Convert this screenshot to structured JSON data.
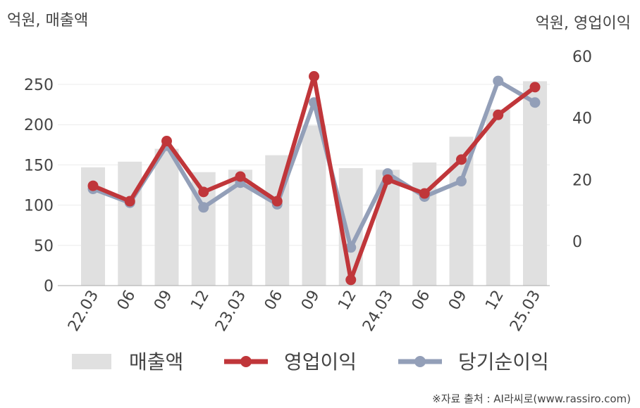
{
  "chart_data": {
    "type": "bar+line",
    "categories": [
      "22.03",
      "06",
      "09",
      "12",
      "23.03",
      "06",
      "09",
      "12",
      "24.03",
      "06",
      "09",
      "12",
      "25.03"
    ],
    "left_axis_label": "억원, 매출액",
    "right_axis_label": "억원, 영업이익",
    "left_ylim": [
      0,
      280
    ],
    "left_ticks": [
      0,
      50,
      100,
      150,
      200,
      250
    ],
    "right_ylim": [
      -14.5,
      64
    ],
    "right_ticks": [
      0,
      20,
      40,
      60
    ],
    "series": [
      {
        "name": "매출액",
        "type": "bar",
        "axis": "left",
        "color": "#e0e0e0",
        "values": [
          147,
          154,
          170,
          141,
          144,
          162,
          199,
          146,
          144,
          153,
          185,
          219,
          254
        ]
      },
      {
        "name": "영업이익",
        "type": "line",
        "axis": "right",
        "color": "#c0363a",
        "values": [
          18,
          13,
          32.5,
          16,
          21,
          13,
          53.5,
          -12.5,
          20,
          15.5,
          26.5,
          41,
          50
        ]
      },
      {
        "name": "당기순이익",
        "type": "line",
        "axis": "right",
        "color": "#939fb8",
        "values": [
          17,
          12.5,
          31,
          11,
          19,
          12,
          45,
          -2,
          22,
          14.5,
          19.5,
          52,
          45
        ]
      }
    ],
    "grid": true,
    "legend_position": "bottom"
  },
  "source_text": "※자료 출처 : AI라씨로(www.rassiro.com)"
}
